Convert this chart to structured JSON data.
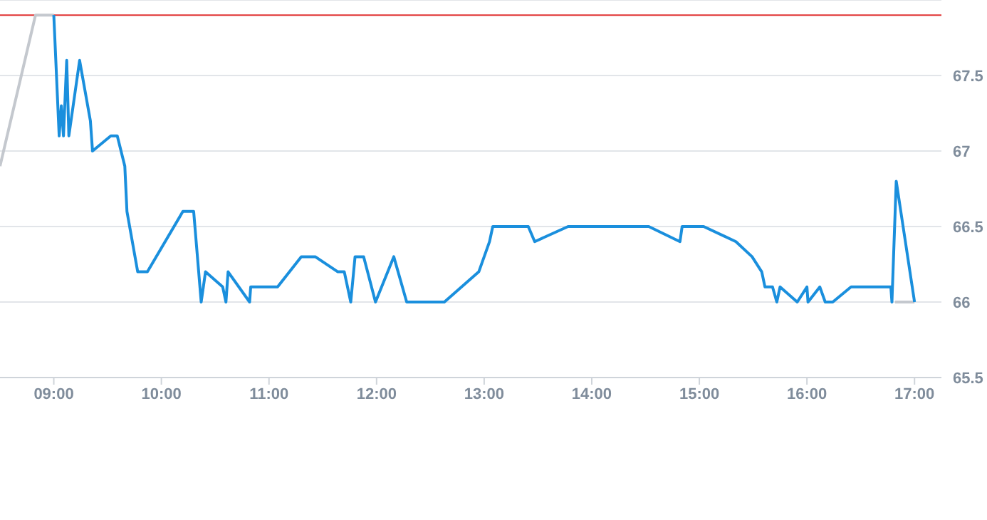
{
  "chart_data": {
    "type": "line",
    "xlim": [
      8.5,
      17.25
    ],
    "xticks": [
      {
        "value": 9,
        "label": "09:00"
      },
      {
        "value": 10,
        "label": "10:00"
      },
      {
        "value": 11,
        "label": "11:00"
      },
      {
        "value": 12,
        "label": "12:00"
      },
      {
        "value": 13,
        "label": "13:00"
      },
      {
        "value": 14,
        "label": "14:00"
      },
      {
        "value": 15,
        "label": "15:00"
      },
      {
        "value": 16,
        "label": "16:00"
      },
      {
        "value": 17,
        "label": "17:00"
      }
    ],
    "ylim": [
      65.5,
      68
    ],
    "yticks": [
      65.5,
      66,
      66.5,
      67,
      67.5
    ],
    "grid": "y",
    "legend": false,
    "marker": "none",
    "line_style": "solid",
    "ref_lines": [
      {
        "axis": "y",
        "value": 67.9,
        "label": null,
        "color": "#e03030"
      }
    ],
    "series": [
      {
        "color": "#c4c8ce",
        "x": [
          8.5,
          8.83,
          9.0
        ],
        "values": [
          66.9,
          67.9,
          67.9
        ]
      },
      {
        "color": "#c4c8ce",
        "x": [
          16.82,
          17.0
        ],
        "values": [
          66.0,
          66.0
        ]
      },
      {
        "color": "#1a8fdd",
        "x": [
          9.0,
          9.05,
          9.07,
          9.09,
          9.12,
          9.14,
          9.24,
          9.34,
          9.36,
          9.53,
          9.59,
          9.66,
          9.68,
          9.78,
          9.87,
          10.2,
          10.3,
          10.37,
          10.41,
          10.57,
          10.6,
          10.62,
          10.82,
          10.83,
          11.08,
          11.3,
          11.43,
          11.64,
          11.7,
          11.76,
          11.8,
          11.88,
          11.99,
          12.16,
          12.28,
          12.63,
          12.95,
          13.05,
          13.08,
          13.41,
          13.47,
          13.78,
          14.53,
          14.82,
          14.84,
          15.04,
          15.34,
          15.49,
          15.58,
          15.61,
          15.68,
          15.72,
          15.75,
          15.91,
          16.0,
          16.01,
          16.12,
          16.17,
          16.24,
          16.41,
          16.78,
          16.79,
          16.83,
          17.0
        ],
        "values": [
          67.9,
          67.1,
          67.3,
          67.1,
          67.6,
          67.1,
          67.6,
          67.2,
          67.0,
          67.1,
          67.1,
          66.9,
          66.6,
          66.2,
          66.2,
          66.6,
          66.6,
          66.0,
          66.2,
          66.1,
          66.0,
          66.2,
          66.0,
          66.1,
          66.1,
          66.3,
          66.3,
          66.2,
          66.2,
          66.0,
          66.3,
          66.3,
          66.0,
          66.3,
          66.0,
          66.0,
          66.2,
          66.4,
          66.5,
          66.5,
          66.4,
          66.5,
          66.5,
          66.4,
          66.5,
          66.5,
          66.4,
          66.3,
          66.2,
          66.1,
          66.1,
          66.0,
          66.1,
          66.0,
          66.1,
          66.0,
          66.1,
          66.0,
          66.0,
          66.1,
          66.1,
          66.0,
          66.8,
          66.0
        ]
      }
    ]
  }
}
